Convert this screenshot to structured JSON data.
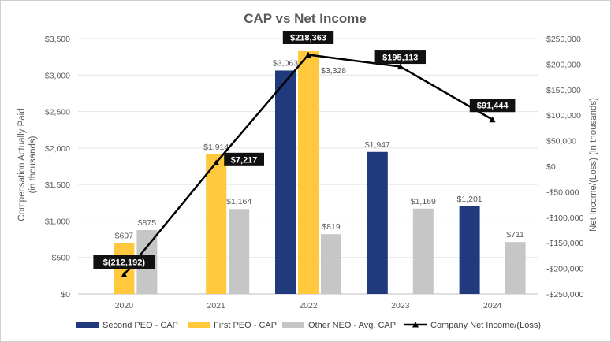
{
  "chart_data": {
    "type": "bar",
    "title": "CAP vs Net Income",
    "categories": [
      "2020",
      "2021",
      "2022",
      "2023",
      "2024"
    ],
    "ylabel": "Compensation Actually Paid (in thousands)",
    "ylabel_lines": [
      "Compensation Actually Paid",
      "(in thousands)"
    ],
    "y2label": "Net Income/(Loss) (in thousands)",
    "ylim": [
      0,
      3500
    ],
    "y2lim": [
      -250000,
      250000
    ],
    "y_ticks": [
      0,
      500,
      1000,
      1500,
      2000,
      2500,
      3000,
      3500
    ],
    "y_tick_labels": [
      "$0",
      "$500",
      "$1,000",
      "$1,500",
      "$2,000",
      "$2,500",
      "$3,000",
      "$3,500"
    ],
    "y2_ticks": [
      250000,
      200000,
      150000,
      100000,
      50000,
      0,
      -50000,
      -100000,
      -150000,
      -200000,
      -250000
    ],
    "y2_tick_labels": [
      "$250,000",
      "$200,000",
      "$150,000",
      "$100,000",
      "$50,000",
      "$0",
      "-$50,000",
      "-$100,000",
      "-$150,000",
      "-$200,000",
      "-$250,000"
    ],
    "series": [
      {
        "name": "Second PEO - CAP",
        "color": "#203a7d",
        "values": [
          null,
          null,
          3063,
          1947,
          1201
        ],
        "labels": [
          "",
          "",
          "$3,063",
          "$1,947",
          "$1,201"
        ]
      },
      {
        "name": "First PEO - CAP",
        "color": "#ffc83d",
        "values": [
          697,
          1914,
          3328,
          null,
          null
        ],
        "labels": [
          "$697",
          "$1,914",
          "$3,328",
          "",
          ""
        ]
      },
      {
        "name": "Other NEO - Avg. CAP",
        "color": "#c6c6c6",
        "values": [
          875,
          1164,
          819,
          1169,
          711
        ],
        "labels": [
          "$875",
          "$1,164",
          "$819",
          "$1,169",
          "$711"
        ]
      }
    ],
    "line": {
      "name": "Company Net Income/(Loss)",
      "color": "#000000",
      "values": [
        -212192,
        7217,
        218363,
        195113,
        91444
      ],
      "labels": [
        "$(212,192)",
        "$7,217",
        "$218,363",
        "$195,113",
        "$91,444"
      ]
    },
    "legend_position": "bottom",
    "grid": "horizontal"
  }
}
